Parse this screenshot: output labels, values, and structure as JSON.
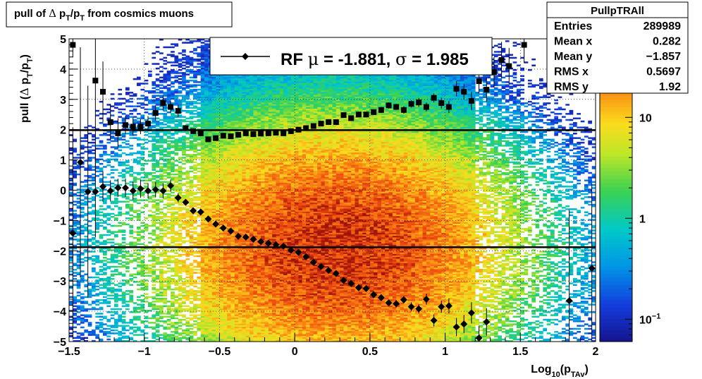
{
  "title_box": {
    "main": "pull of ",
    "delta": "Δ",
    "p1": "p",
    "sub1": "T",
    "slash": "/p",
    "sub2": "T",
    "rest": " from cosmics muons"
  },
  "stats": {
    "name": "PullpTRAll",
    "rows": [
      {
        "label": "Entries",
        "value": "289989"
      },
      {
        "label": "Mean x",
        "value": "0.282"
      },
      {
        "label": "Mean y",
        "value": "−1.857"
      },
      {
        "label": "RMS x",
        "value": "0.5697"
      },
      {
        "label": "RMS y",
        "value": "1.92"
      }
    ]
  },
  "legend": {
    "text_prefix": "RF ",
    "mu_sym": "μ",
    "text_mid": " = -1.881, ",
    "sigma_sym": "σ",
    "text_end": " =   1.985"
  },
  "colors": {
    "markers": "#000000",
    "lines": "#000000",
    "palette": "rainbow"
  },
  "chart_data": {
    "type": "heatmap",
    "xlabel": {
      "main": "Log",
      "sub1": "10",
      "open": "(p",
      "sub2": "TAv",
      "close": ")"
    },
    "ylabel": {
      "main": "pull (",
      "delta": "Δ",
      "p1": " p",
      "sub1": "T",
      "slash": "/p",
      "sub2": "T",
      "close": ")"
    },
    "xlim": [
      -1.5,
      2.0
    ],
    "ylim": [
      -5,
      5
    ],
    "x_ticks": [
      "−1.5",
      "−1",
      "−0.5",
      "0",
      "0.5",
      "1",
      "1.5",
      "2"
    ],
    "x_tick_values": [
      -1.5,
      -1,
      -0.5,
      0,
      0.5,
      1,
      1.5,
      2
    ],
    "y_ticks": [
      "−5",
      "−4",
      "−3",
      "−2",
      "−1",
      "0",
      "1",
      "2",
      "3",
      "4",
      "5"
    ],
    "y_tick_values": [
      -5,
      -4,
      -3,
      -2,
      -1,
      0,
      1,
      2,
      3,
      4,
      5
    ],
    "z_scale": "log",
    "z_ticks": [
      {
        "value": 10,
        "label": "10"
      },
      {
        "value": 1,
        "label": "1"
      },
      {
        "value": 0.1,
        "label": "10",
        "sup": "−1"
      }
    ],
    "z_range": [
      0.06,
      60
    ],
    "grid": true,
    "mean_line": -1.881,
    "sigma_line": 1.985,
    "upper_series": [
      {
        "x": -1.475,
        "y": 4.8,
        "err": 0.4
      },
      {
        "x": -1.275,
        "y": 3.25,
        "err": 1.0
      },
      {
        "x": -1.325,
        "y": 3.62,
        "err": 3.0
      },
      {
        "x": -1.225,
        "y": 2.25,
        "err": 0.6
      },
      {
        "x": -1.175,
        "y": 1.88,
        "err": 0.5
      },
      {
        "x": -1.125,
        "y": 2.15,
        "err": 0.3
      },
      {
        "x": -1.075,
        "y": 2.1,
        "err": 0.3
      },
      {
        "x": -1.025,
        "y": 2.1,
        "err": 0.25
      },
      {
        "x": -0.975,
        "y": 2.2,
        "err": 0.25
      },
      {
        "x": -0.925,
        "y": 2.55,
        "err": 0.25
      },
      {
        "x": -0.875,
        "y": 2.88,
        "err": 0.25
      },
      {
        "x": -0.825,
        "y": 2.75,
        "err": 0.2
      },
      {
        "x": -0.775,
        "y": 2.62,
        "err": 0.2
      },
      {
        "x": -0.725,
        "y": 2.05,
        "err": 0.1
      },
      {
        "x": -0.675,
        "y": 1.95,
        "err": 0.08
      },
      {
        "x": -0.625,
        "y": 1.88,
        "err": 0.06
      },
      {
        "x": -0.575,
        "y": 1.68,
        "err": 0.05
      },
      {
        "x": -0.525,
        "y": 1.72,
        "err": 0.05
      },
      {
        "x": -0.475,
        "y": 1.8,
        "err": 0.04
      },
      {
        "x": -0.425,
        "y": 1.78,
        "err": 0.04
      },
      {
        "x": -0.375,
        "y": 1.83,
        "err": 0.04
      },
      {
        "x": -0.325,
        "y": 1.88,
        "err": 0.04
      },
      {
        "x": -0.275,
        "y": 1.85,
        "err": 0.04
      },
      {
        "x": -0.225,
        "y": 1.87,
        "err": 0.04
      },
      {
        "x": -0.175,
        "y": 1.88,
        "err": 0.04
      },
      {
        "x": -0.125,
        "y": 1.9,
        "err": 0.04
      },
      {
        "x": -0.075,
        "y": 1.88,
        "err": 0.04
      },
      {
        "x": -0.025,
        "y": 1.95,
        "err": 0.04
      },
      {
        "x": 0.025,
        "y": 2.0,
        "err": 0.04
      },
      {
        "x": 0.075,
        "y": 2.05,
        "err": 0.04
      },
      {
        "x": 0.125,
        "y": 2.12,
        "err": 0.04
      },
      {
        "x": 0.175,
        "y": 2.2,
        "err": 0.05
      },
      {
        "x": 0.225,
        "y": 2.25,
        "err": 0.05
      },
      {
        "x": 0.275,
        "y": 2.25,
        "err": 0.05
      },
      {
        "x": 0.325,
        "y": 2.48,
        "err": 0.06
      },
      {
        "x": 0.375,
        "y": 2.38,
        "err": 0.06
      },
      {
        "x": 0.425,
        "y": 2.5,
        "err": 0.07
      },
      {
        "x": 0.475,
        "y": 2.5,
        "err": 0.08
      },
      {
        "x": 0.525,
        "y": 2.58,
        "err": 0.08
      },
      {
        "x": 0.575,
        "y": 2.65,
        "err": 0.1
      },
      {
        "x": 0.625,
        "y": 2.8,
        "err": 0.1
      },
      {
        "x": 0.675,
        "y": 2.75,
        "err": 0.1
      },
      {
        "x": 0.725,
        "y": 2.65,
        "err": 0.12
      },
      {
        "x": 0.775,
        "y": 2.85,
        "err": 0.12
      },
      {
        "x": 0.825,
        "y": 2.9,
        "err": 0.15
      },
      {
        "x": 0.875,
        "y": 2.75,
        "err": 0.15
      },
      {
        "x": 0.925,
        "y": 3.05,
        "err": 0.15
      },
      {
        "x": 0.975,
        "y": 2.88,
        "err": 0.18
      },
      {
        "x": 1.025,
        "y": 2.75,
        "err": 0.2
      },
      {
        "x": 1.075,
        "y": 3.35,
        "err": 0.25
      },
      {
        "x": 1.125,
        "y": 3.25,
        "err": 0.25
      },
      {
        "x": 1.175,
        "y": 2.95,
        "err": 0.3
      },
      {
        "x": 1.225,
        "y": 3.6,
        "err": 0.4
      },
      {
        "x": 1.275,
        "y": 3.32,
        "err": 0.4
      },
      {
        "x": 1.325,
        "y": 3.9,
        "err": 0.5
      },
      {
        "x": 1.375,
        "y": 4.3,
        "err": 0.6
      },
      {
        "x": 1.425,
        "y": 4.1,
        "err": 0.6
      },
      {
        "x": 1.525,
        "y": 4.8,
        "err": 0.6
      }
    ],
    "lower_series": [
      {
        "x": -1.475,
        "y": -1.42,
        "err": 3.5
      },
      {
        "x": -1.425,
        "y": 0.92,
        "err": 3.8
      },
      {
        "x": -1.375,
        "y": -0.05,
        "err": 3.5
      },
      {
        "x": -1.325,
        "y": -0.05,
        "err": 1.5
      },
      {
        "x": -1.275,
        "y": 0.12,
        "err": 0.5
      },
      {
        "x": -1.225,
        "y": -0.02,
        "err": 0.35
      },
      {
        "x": -1.175,
        "y": 0.08,
        "err": 0.3
      },
      {
        "x": -1.125,
        "y": 0.08,
        "err": 0.3
      },
      {
        "x": -1.075,
        "y": -0.02,
        "err": 0.3
      },
      {
        "x": -1.025,
        "y": 0.05,
        "err": 0.3
      },
      {
        "x": -0.975,
        "y": -0.02,
        "err": 0.25
      },
      {
        "x": -0.925,
        "y": 0.02,
        "err": 0.25
      },
      {
        "x": -0.875,
        "y": -0.02,
        "err": 0.25
      },
      {
        "x": -0.825,
        "y": 0.15,
        "err": 0.2
      },
      {
        "x": -0.775,
        "y": -0.25,
        "err": 0.15
      },
      {
        "x": -0.725,
        "y": -0.4,
        "err": 0.1
      },
      {
        "x": -0.675,
        "y": -0.68,
        "err": 0.08
      },
      {
        "x": -0.625,
        "y": -0.72,
        "err": 0.06
      },
      {
        "x": -0.575,
        "y": -0.95,
        "err": 0.05
      },
      {
        "x": -0.525,
        "y": -1.12,
        "err": 0.05
      },
      {
        "x": -0.475,
        "y": -1.25,
        "err": 0.04
      },
      {
        "x": -0.425,
        "y": -1.35,
        "err": 0.04
      },
      {
        "x": -0.375,
        "y": -1.52,
        "err": 0.04
      },
      {
        "x": -0.325,
        "y": -1.55,
        "err": 0.04
      },
      {
        "x": -0.275,
        "y": -1.62,
        "err": 0.04
      },
      {
        "x": -0.225,
        "y": -1.7,
        "err": 0.04
      },
      {
        "x": -0.175,
        "y": -1.75,
        "err": 0.04
      },
      {
        "x": -0.125,
        "y": -1.8,
        "err": 0.04
      },
      {
        "x": -0.075,
        "y": -1.85,
        "err": 0.04
      },
      {
        "x": -0.025,
        "y": -1.98,
        "err": 0.04
      },
      {
        "x": 0.025,
        "y": -2.05,
        "err": 0.04
      },
      {
        "x": 0.075,
        "y": -2.2,
        "err": 0.04
      },
      {
        "x": 0.125,
        "y": -2.38,
        "err": 0.05
      },
      {
        "x": 0.175,
        "y": -2.52,
        "err": 0.05
      },
      {
        "x": 0.225,
        "y": -2.65,
        "err": 0.05
      },
      {
        "x": 0.275,
        "y": -2.75,
        "err": 0.06
      },
      {
        "x": 0.325,
        "y": -2.98,
        "err": 0.06
      },
      {
        "x": 0.375,
        "y": -3.08,
        "err": 0.07
      },
      {
        "x": 0.425,
        "y": -3.22,
        "err": 0.08
      },
      {
        "x": 0.475,
        "y": -3.25,
        "err": 0.08
      },
      {
        "x": 0.525,
        "y": -3.45,
        "err": 0.1
      },
      {
        "x": 0.575,
        "y": -3.55,
        "err": 0.1
      },
      {
        "x": 0.625,
        "y": -3.72,
        "err": 0.1
      },
      {
        "x": 0.675,
        "y": -3.75,
        "err": 0.12
      },
      {
        "x": 0.725,
        "y": -3.62,
        "err": 0.12
      },
      {
        "x": 0.775,
        "y": -3.85,
        "err": 0.15
      },
      {
        "x": 0.825,
        "y": -3.92,
        "err": 0.15
      },
      {
        "x": 0.875,
        "y": -3.6,
        "err": 0.18
      },
      {
        "x": 0.925,
        "y": -4.3,
        "err": 0.2
      },
      {
        "x": 0.975,
        "y": -3.85,
        "err": 0.2
      },
      {
        "x": 1.025,
        "y": -3.82,
        "err": 0.25
      },
      {
        "x": 1.075,
        "y": -4.52,
        "err": 0.3
      },
      {
        "x": 1.125,
        "y": -4.42,
        "err": 0.3
      },
      {
        "x": 1.175,
        "y": -4.05,
        "err": 0.35
      },
      {
        "x": 1.225,
        "y": -4.88,
        "err": 0.4
      },
      {
        "x": 1.275,
        "y": -4.35,
        "err": 0.45
      },
      {
        "x": 1.825,
        "y": -3.65,
        "err": 3.0
      },
      {
        "x": 1.975,
        "y": -2.58,
        "err": 2.8
      }
    ]
  }
}
